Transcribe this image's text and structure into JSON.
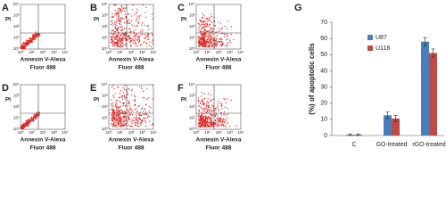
{
  "panels": [
    {
      "label": "A"
    },
    {
      "label": "B"
    },
    {
      "label": "C"
    },
    {
      "label": "D"
    },
    {
      "label": "E"
    },
    {
      "label": "F"
    }
  ],
  "flow_axis": {
    "y_label": "PI",
    "x_label": [
      "Annexin V-Alexa",
      "Fluor 488"
    ],
    "ticks": [
      "10⁰",
      "10¹",
      "10²",
      "10³",
      "10⁴"
    ]
  },
  "chart_data": {
    "type": "bar",
    "panel_label": "G",
    "y_label": "(%) of apoptotic cells",
    "categories": [
      "C",
      "GO-treated",
      "rGO-treated"
    ],
    "series": [
      {
        "name": "U87",
        "color": "#4a7ebb",
        "values": [
          0.5,
          12.5,
          58
        ],
        "errors": [
          0.5,
          2,
          2.5
        ]
      },
      {
        "name": "U118",
        "color": "#be4b48",
        "values": [
          0.5,
          10.5,
          51
        ],
        "errors": [
          0.5,
          2,
          2.5
        ]
      }
    ],
    "ylim": [
      0,
      70
    ],
    "yticks": [
      0,
      10,
      20,
      30,
      40,
      50,
      60,
      70
    ],
    "grid": false
  }
}
